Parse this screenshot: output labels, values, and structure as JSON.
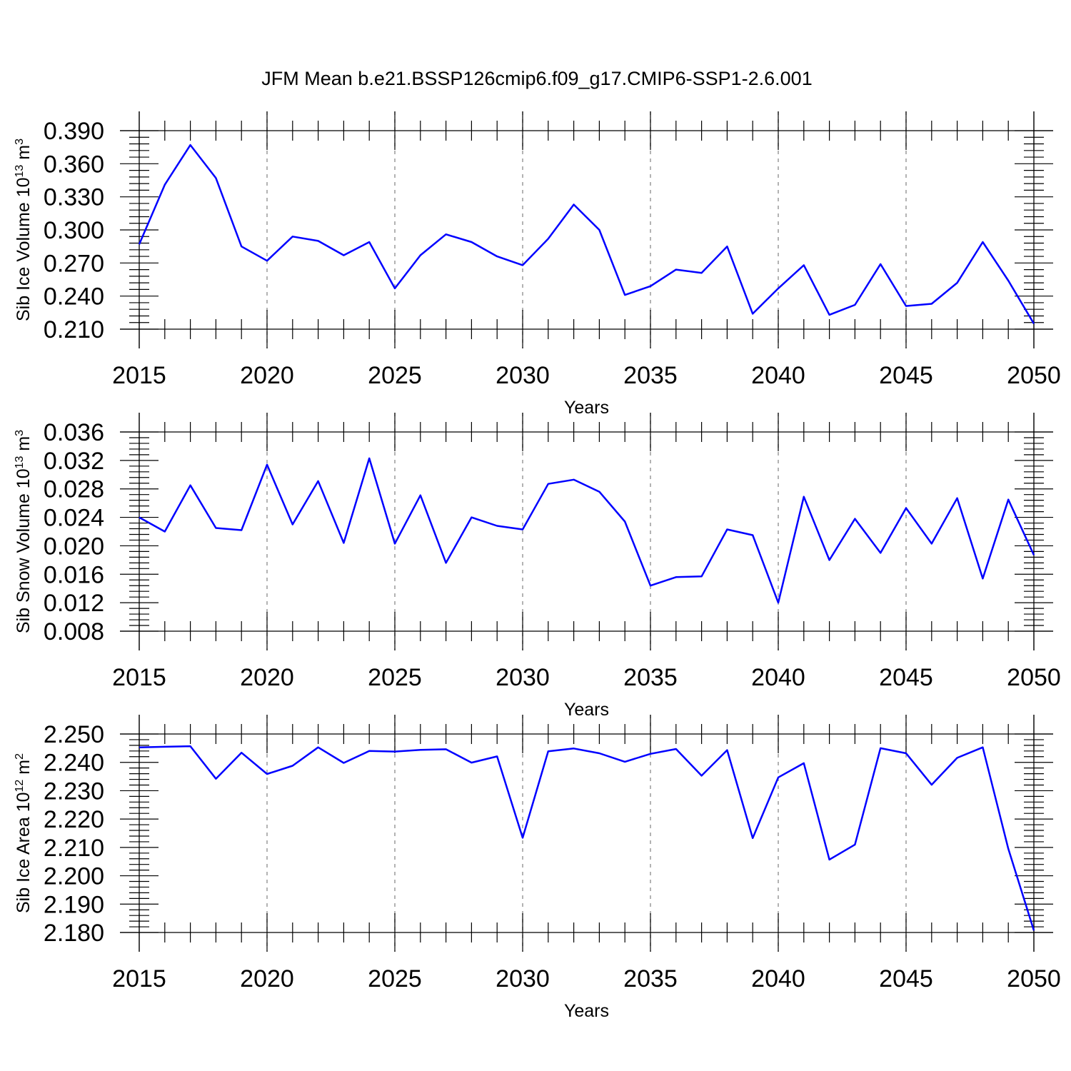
{
  "figure": {
    "title": "JFM Mean b.e21.BSSP126cmip6.f09_g17.CMIP6-SSP1-2.6.001",
    "colors": {
      "series": "#0000ff",
      "grid": "#9a9a9a",
      "axes": "#000000"
    }
  },
  "chart_data": [
    {
      "type": "line",
      "xlabel": "Years",
      "ylabel": "Sib Ice Volume 10",
      "ylabel_exp": "13",
      "ylabel_unit": " m",
      "ylabel_unit_exp": "3",
      "xlim": [
        2015,
        2050
      ],
      "ylim": [
        0.21,
        0.39
      ],
      "xticks": [
        "2015",
        "2020",
        "2025",
        "2030",
        "2035",
        "2040",
        "2045",
        "2050"
      ],
      "yticks": [
        "0.210",
        "0.240",
        "0.270",
        "0.300",
        "0.330",
        "0.360",
        "0.390"
      ],
      "grid": "vertical dashed at major x ticks",
      "x": [
        2015,
        2016,
        2017,
        2018,
        2019,
        2020,
        2021,
        2022,
        2023,
        2024,
        2025,
        2026,
        2027,
        2028,
        2029,
        2030,
        2031,
        2032,
        2033,
        2034,
        2035,
        2036,
        2037,
        2038,
        2039,
        2040,
        2041,
        2042,
        2043,
        2044,
        2045,
        2046,
        2047,
        2048,
        2049,
        2050
      ],
      "values": [
        0.287,
        0.341,
        0.377,
        0.347,
        0.285,
        0.272,
        0.294,
        0.29,
        0.277,
        0.289,
        0.247,
        0.277,
        0.296,
        0.289,
        0.276,
        0.268,
        0.292,
        0.323,
        0.3,
        0.241,
        0.249,
        0.264,
        0.261,
        0.285,
        0.224,
        0.247,
        0.268,
        0.223,
        0.232,
        0.269,
        0.231,
        0.233,
        0.252,
        0.289,
        0.254,
        0.215
      ]
    },
    {
      "type": "line",
      "xlabel": "Years",
      "ylabel": "Sib Snow Volume 10",
      "ylabel_exp": "13",
      "ylabel_unit": " m",
      "ylabel_unit_exp": "3",
      "xlim": [
        2015,
        2050
      ],
      "ylim": [
        0.008,
        0.036
      ],
      "xticks": [
        "2015",
        "2020",
        "2025",
        "2030",
        "2035",
        "2040",
        "2045",
        "2050"
      ],
      "yticks": [
        "0.008",
        "0.012",
        "0.016",
        "0.020",
        "0.024",
        "0.028",
        "0.032",
        "0.036"
      ],
      "grid": "vertical dashed at major x ticks",
      "x": [
        2015,
        2016,
        2017,
        2018,
        2019,
        2020,
        2021,
        2022,
        2023,
        2024,
        2025,
        2026,
        2027,
        2028,
        2029,
        2030,
        2031,
        2032,
        2033,
        2034,
        2035,
        2036,
        2037,
        2038,
        2039,
        2040,
        2041,
        2042,
        2043,
        2044,
        2045,
        2046,
        2047,
        2048,
        2049,
        2050
      ],
      "values": [
        0.024,
        0.022,
        0.0285,
        0.0225,
        0.0222,
        0.0314,
        0.023,
        0.0291,
        0.0204,
        0.0323,
        0.0203,
        0.0271,
        0.0176,
        0.024,
        0.0228,
        0.0223,
        0.0287,
        0.0293,
        0.0276,
        0.0234,
        0.0144,
        0.0156,
        0.0157,
        0.0223,
        0.0215,
        0.012,
        0.0269,
        0.018,
        0.0238,
        0.019,
        0.0253,
        0.0203,
        0.0267,
        0.0154,
        0.0265,
        0.0187
      ]
    },
    {
      "type": "line",
      "xlabel": "Years",
      "ylabel": "Sib Ice Area 10",
      "ylabel_exp": "12",
      "ylabel_unit": " m",
      "ylabel_unit_exp": "2",
      "xlim": [
        2015,
        2050
      ],
      "ylim": [
        2.18,
        2.25
      ],
      "xticks": [
        "2015",
        "2020",
        "2025",
        "2030",
        "2035",
        "2040",
        "2045",
        "2050"
      ],
      "yticks": [
        "2.180",
        "2.190",
        "2.200",
        "2.210",
        "2.220",
        "2.230",
        "2.240",
        "2.250"
      ],
      "grid": "vertical dashed at major x ticks",
      "x": [
        2015,
        2016,
        2017,
        2018,
        2019,
        2020,
        2021,
        2022,
        2023,
        2024,
        2025,
        2026,
        2027,
        2028,
        2029,
        2030,
        2031,
        2032,
        2033,
        2034,
        2035,
        2036,
        2037,
        2038,
        2039,
        2040,
        2041,
        2042,
        2043,
        2044,
        2045,
        2046,
        2047,
        2048,
        2049,
        2050
      ],
      "values": [
        2.2453,
        2.2455,
        2.2457,
        2.2342,
        2.2434,
        2.2359,
        2.2388,
        2.2453,
        2.2398,
        2.244,
        2.2438,
        2.2444,
        2.2446,
        2.2399,
        2.2421,
        2.2134,
        2.2439,
        2.2449,
        2.2432,
        2.2402,
        2.243,
        2.2447,
        2.2353,
        2.2443,
        2.2133,
        2.2347,
        2.2397,
        2.2057,
        2.211,
        2.245,
        2.2432,
        2.2321,
        2.2416,
        2.2453,
        2.2095,
        2.1807
      ]
    }
  ]
}
